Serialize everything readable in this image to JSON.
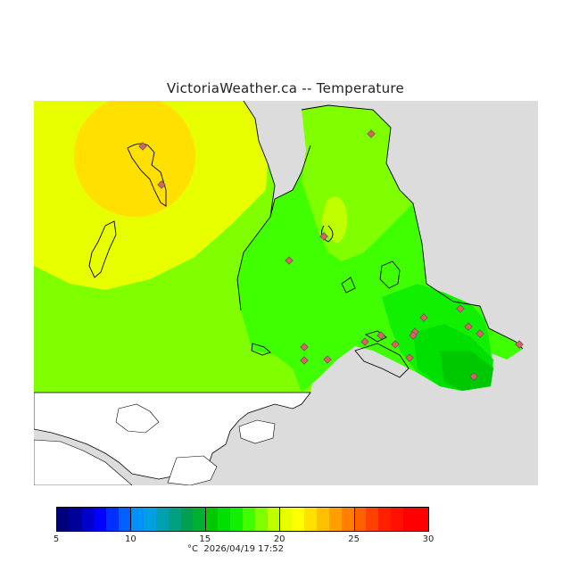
{
  "header": {
    "title": "VictoriaWeather.ca -- Temperature"
  },
  "legend": {
    "unit": "°C",
    "timestamp": "2026/04/19 17:52",
    "min": 5,
    "max": 30,
    "ticks": [
      "5",
      "10",
      "15",
      "20",
      "25",
      "30"
    ],
    "colors": [
      "#00007a",
      "#00009a",
      "#0000c8",
      "#0000ff",
      "#0030ff",
      "#0060ff",
      "#0090ff",
      "#00a0e0",
      "#00a0b0",
      "#00a080",
      "#00a050",
      "#00b030",
      "#00c800",
      "#00e000",
      "#10f000",
      "#40ff00",
      "#80ff00",
      "#c0ff00",
      "#e8ff00",
      "#ffff00",
      "#ffe000",
      "#ffc000",
      "#ffa000",
      "#ff8000",
      "#ff6000",
      "#ff4000",
      "#ff2000",
      "#ff1000",
      "#ff0000",
      "#ff0000"
    ]
  },
  "map": {
    "water_color": "#dcdcdc",
    "land_color": "#ffffff",
    "stations": [
      {
        "id": "s1"
      },
      {
        "id": "s2"
      },
      {
        "id": "s3"
      },
      {
        "id": "s4"
      },
      {
        "id": "s5"
      },
      {
        "id": "s6"
      },
      {
        "id": "s7"
      },
      {
        "id": "s8"
      },
      {
        "id": "s9"
      },
      {
        "id": "s10"
      },
      {
        "id": "s11"
      },
      {
        "id": "s12"
      },
      {
        "id": "s13"
      },
      {
        "id": "s14"
      },
      {
        "id": "s15"
      },
      {
        "id": "s16"
      },
      {
        "id": "s17"
      },
      {
        "id": "s18"
      },
      {
        "id": "s19"
      },
      {
        "id": "s20"
      }
    ]
  }
}
